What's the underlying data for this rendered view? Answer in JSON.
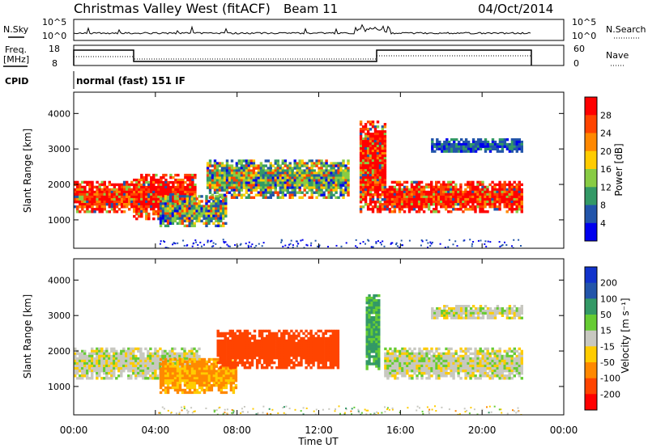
{
  "header": {
    "station": "Christmas Valley West (fitACF)",
    "beam": "Beam 11",
    "date": "04/Oct/2014"
  },
  "top_panels": {
    "nsky_label": "N.Sky",
    "nsearch_label": "N.Search",
    "freq_label_1": "Freq.",
    "freq_label_2": "[MHz]",
    "nave_label": "Nave",
    "cpid_label": "CPID",
    "cpid_value": "normal (fast) 151 IF",
    "noise_ticks": [
      "10^5",
      "10^0"
    ],
    "noise_ticks_right": [
      "10^5",
      "10^0"
    ],
    "freq_ticks": [
      "18",
      "8"
    ],
    "nave_ticks": [
      "60",
      "0"
    ]
  },
  "colorbars": {
    "power": {
      "label": "Power [dB]",
      "ticks": [
        "28",
        "24",
        "20",
        "16",
        "12",
        "8",
        "4"
      ],
      "colors": [
        "#ff0000",
        "#ff4400",
        "#ff8800",
        "#ffcc00",
        "#88cc44",
        "#339966",
        "#2255aa",
        "#0000ee"
      ]
    },
    "velocity": {
      "label": "Velocity [m s⁻¹]",
      "ticks": [
        "200",
        "100",
        "50",
        "15",
        "-15",
        "-50",
        "-100",
        "-200"
      ],
      "colors": [
        "#1133cc",
        "#2255aa",
        "#339966",
        "#66cc33",
        "#c8c8c0",
        "#ffcc00",
        "#ff8800",
        "#ff4400",
        "#ff0000"
      ]
    }
  },
  "chart_data": [
    {
      "type": "heatmap",
      "name": "",
      "ylabel": "Slant Range [km]",
      "xlabel": "",
      "x_ticks": [
        "00:00",
        "04:00",
        "08:00",
        "12:00",
        "16:00",
        "20:00",
        "00:00"
      ],
      "y_ticks": [
        "4000",
        "3000",
        "2000",
        "1000"
      ],
      "ylim": [
        200,
        4600
      ],
      "xlim_hours": [
        0,
        24
      ],
      "bands": [
        {
          "t": [
            0.0,
            2.9
          ],
          "r": [
            1200,
            2100
          ],
          "level": "high"
        },
        {
          "t": [
            2.9,
            6.0
          ],
          "r": [
            1000,
            2300
          ],
          "level": "high"
        },
        {
          "t": [
            4.2,
            7.5
          ],
          "r": [
            800,
            1700
          ],
          "level": "mid"
        },
        {
          "t": [
            6.5,
            13.5
          ],
          "r": [
            1600,
            2700
          ],
          "level": "mid"
        },
        {
          "t": [
            14.0,
            15.3
          ],
          "r": [
            1200,
            3800
          ],
          "level": "high"
        },
        {
          "t": [
            15.3,
            22.0
          ],
          "r": [
            1200,
            2100
          ],
          "level": "high"
        },
        {
          "t": [
            17.5,
            22.0
          ],
          "r": [
            2900,
            3300
          ],
          "level": "low"
        }
      ]
    },
    {
      "type": "heatmap",
      "name": "",
      "ylabel": "Slant Range [km]",
      "xlabel": "Time UT",
      "x_ticks": [
        "00:00",
        "04:00",
        "08:00",
        "12:00",
        "16:00",
        "20:00",
        "00:00"
      ],
      "y_ticks": [
        "4000",
        "3000",
        "2000",
        "1000"
      ],
      "ylim": [
        200,
        4600
      ],
      "xlim_hours": [
        0,
        24
      ],
      "bands": [
        {
          "t": [
            0.0,
            6.2
          ],
          "r": [
            1200,
            2100
          ],
          "velocity": 0
        },
        {
          "t": [
            4.2,
            8.0
          ],
          "r": [
            800,
            1800
          ],
          "velocity": -40
        },
        {
          "t": [
            7.0,
            13.0
          ],
          "r": [
            1500,
            2600
          ],
          "velocity": -110
        },
        {
          "t": [
            14.3,
            15.0
          ],
          "r": [
            1400,
            3600
          ],
          "velocity": 40
        },
        {
          "t": [
            15.2,
            22.0
          ],
          "r": [
            1200,
            2100
          ],
          "velocity": 0
        },
        {
          "t": [
            17.5,
            22.0
          ],
          "r": [
            2900,
            3300
          ],
          "velocity": 0
        }
      ]
    }
  ]
}
